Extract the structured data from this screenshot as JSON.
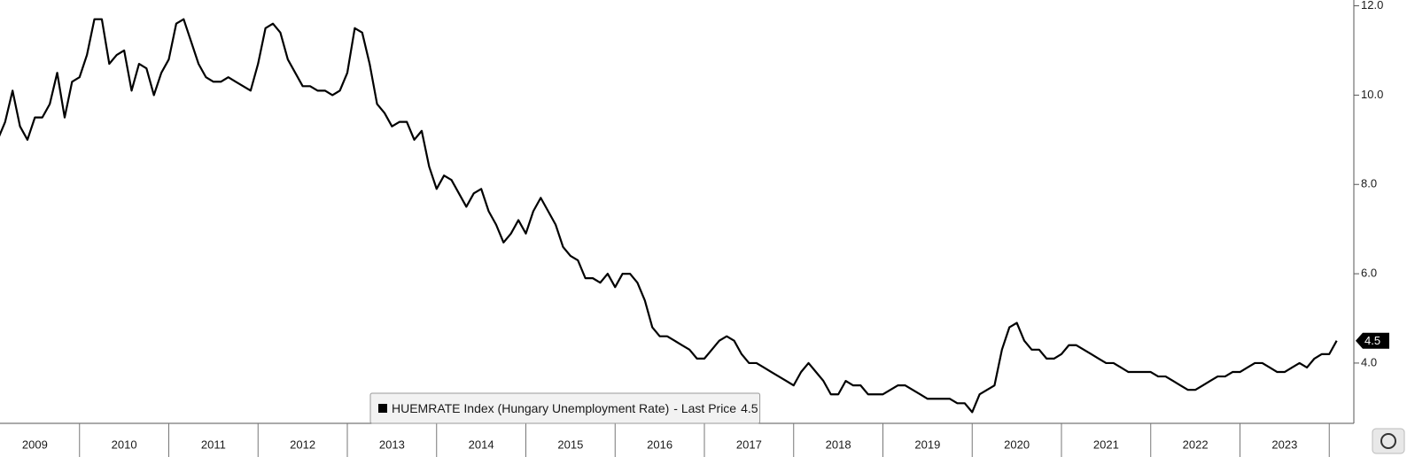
{
  "chart_data": {
    "type": "line",
    "years": [
      "2009",
      "2010",
      "2011",
      "2012",
      "2013",
      "2014",
      "2015",
      "2016",
      "2017",
      "2018",
      "2019",
      "2020",
      "2021",
      "2022",
      "2023"
    ],
    "x": [
      "2009-02",
      "2009-03",
      "2009-04",
      "2009-05",
      "2009-06",
      "2009-07",
      "2009-08",
      "2009-09",
      "2009-10",
      "2009-11",
      "2009-12",
      "2010-01",
      "2010-02",
      "2010-03",
      "2010-04",
      "2010-05",
      "2010-06",
      "2010-07",
      "2010-08",
      "2010-09",
      "2010-10",
      "2010-11",
      "2010-12",
      "2011-01",
      "2011-02",
      "2011-03",
      "2011-04",
      "2011-05",
      "2011-06",
      "2011-07",
      "2011-08",
      "2011-09",
      "2011-10",
      "2011-11",
      "2011-12",
      "2012-01",
      "2012-02",
      "2012-03",
      "2012-04",
      "2012-05",
      "2012-06",
      "2012-07",
      "2012-08",
      "2012-09",
      "2012-10",
      "2012-11",
      "2012-12",
      "2013-01",
      "2013-02",
      "2013-03",
      "2013-04",
      "2013-05",
      "2013-06",
      "2013-07",
      "2013-08",
      "2013-09",
      "2013-10",
      "2013-11",
      "2013-12",
      "2014-01",
      "2014-02",
      "2014-03",
      "2014-04",
      "2014-05",
      "2014-06",
      "2014-07",
      "2014-08",
      "2014-09",
      "2014-10",
      "2014-11",
      "2014-12",
      "2015-01",
      "2015-02",
      "2015-03",
      "2015-04",
      "2015-05",
      "2015-06",
      "2015-07",
      "2015-08",
      "2015-09",
      "2015-10",
      "2015-11",
      "2015-12",
      "2016-01",
      "2016-02",
      "2016-03",
      "2016-04",
      "2016-05",
      "2016-06",
      "2016-07",
      "2016-08",
      "2016-09",
      "2016-10",
      "2016-11",
      "2016-12",
      "2017-01",
      "2017-02",
      "2017-03",
      "2017-04",
      "2017-05",
      "2017-06",
      "2017-07",
      "2017-08",
      "2017-09",
      "2017-10",
      "2017-11",
      "2017-12",
      "2018-01",
      "2018-02",
      "2018-03",
      "2018-04",
      "2018-05",
      "2018-06",
      "2018-07",
      "2018-08",
      "2018-09",
      "2018-10",
      "2018-11",
      "2018-12",
      "2019-01",
      "2019-02",
      "2019-03",
      "2019-04",
      "2019-05",
      "2019-06",
      "2019-07",
      "2019-08",
      "2019-09",
      "2019-10",
      "2019-11",
      "2019-12",
      "2020-01",
      "2020-02",
      "2020-03",
      "2020-04",
      "2020-05",
      "2020-06",
      "2020-07",
      "2020-08",
      "2020-09",
      "2020-10",
      "2020-11",
      "2020-12",
      "2021-01",
      "2021-02",
      "2021-03",
      "2021-04",
      "2021-05",
      "2021-06",
      "2021-07",
      "2021-08",
      "2021-09",
      "2021-10",
      "2021-11",
      "2021-12",
      "2022-01",
      "2022-02",
      "2022-03",
      "2022-04",
      "2022-05",
      "2022-06",
      "2022-07",
      "2022-08",
      "2022-09",
      "2022-10",
      "2022-11",
      "2022-12",
      "2023-01",
      "2023-02",
      "2023-03",
      "2023-04",
      "2023-05",
      "2023-06",
      "2023-07",
      "2023-08",
      "2023-09",
      "2023-10",
      "2023-11",
      "2023-12",
      "2024-01",
      "2024-02"
    ],
    "series": [
      {
        "name": "HUEMRATE Index (Hungary Unemployment Rate)",
        "color": "#000000",
        "values": [
          9.0,
          9.4,
          10.1,
          9.3,
          9.0,
          9.5,
          9.5,
          9.8,
          10.5,
          9.5,
          10.3,
          10.4,
          10.9,
          11.7,
          11.7,
          10.7,
          10.9,
          11.0,
          10.1,
          10.7,
          10.6,
          10.0,
          10.5,
          10.8,
          11.6,
          11.7,
          11.2,
          10.7,
          10.4,
          10.3,
          10.3,
          10.4,
          10.3,
          10.2,
          10.1,
          10.7,
          11.5,
          11.6,
          11.4,
          10.8,
          10.5,
          10.2,
          10.2,
          10.1,
          10.1,
          10.0,
          10.1,
          10.5,
          11.5,
          11.4,
          10.7,
          9.8,
          9.6,
          9.3,
          9.4,
          9.4,
          9.0,
          9.2,
          8.4,
          7.9,
          8.2,
          8.1,
          7.8,
          7.5,
          7.8,
          7.9,
          7.4,
          7.1,
          6.7,
          6.9,
          7.2,
          6.9,
          7.4,
          7.7,
          7.4,
          7.1,
          6.6,
          6.4,
          6.3,
          5.9,
          5.9,
          5.8,
          6.0,
          5.7,
          6.0,
          6.0,
          5.8,
          5.4,
          4.8,
          4.6,
          4.6,
          4.5,
          4.4,
          4.3,
          4.1,
          4.1,
          4.3,
          4.5,
          4.6,
          4.5,
          4.2,
          4.0,
          4.0,
          3.9,
          3.8,
          3.7,
          3.6,
          3.5,
          3.8,
          4.0,
          3.8,
          3.6,
          3.3,
          3.3,
          3.6,
          3.5,
          3.5,
          3.3,
          3.3,
          3.3,
          3.4,
          3.5,
          3.5,
          3.4,
          3.3,
          3.2,
          3.2,
          3.2,
          3.2,
          3.1,
          3.1,
          2.9,
          3.3,
          3.4,
          3.5,
          4.3,
          4.8,
          4.9,
          4.5,
          4.3,
          4.3,
          4.1,
          4.1,
          4.2,
          4.4,
          4.4,
          4.3,
          4.2,
          4.1,
          4.0,
          4.0,
          3.9,
          3.8,
          3.8,
          3.8,
          3.8,
          3.7,
          3.7,
          3.6,
          3.5,
          3.4,
          3.4,
          3.5,
          3.6,
          3.7,
          3.7,
          3.8,
          3.8,
          3.9,
          4.0,
          4.0,
          3.9,
          3.8,
          3.8,
          3.9,
          4.0,
          3.9,
          4.1,
          4.2,
          4.2,
          4.5
        ]
      }
    ],
    "ylim": [
      2.65,
      12.13
    ],
    "yticks": [
      {
        "value": 4,
        "label": "4.0"
      },
      {
        "value": 6,
        "label": "6.0"
      },
      {
        "value": 8,
        "label": "8.0"
      },
      {
        "value": 10,
        "label": "10.0"
      },
      {
        "value": 12,
        "label": "12.0"
      }
    ],
    "last_price_label": "- Last Price",
    "last_price": 4.5,
    "legend_position": "bottom-center"
  }
}
